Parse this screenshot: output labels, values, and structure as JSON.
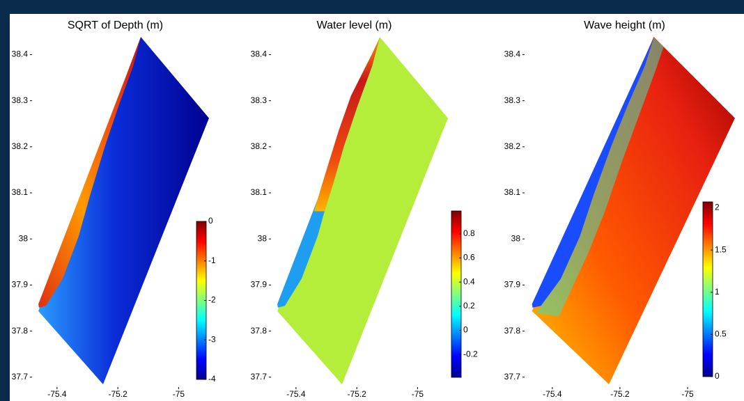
{
  "chart_data": [
    {
      "type": "map",
      "title": "SQRT of Depth (m)",
      "xlim": [
        -75.48,
        -74.9
      ],
      "xticks": [
        -75.4,
        -75.2,
        -75
      ],
      "ylim": [
        37.68,
        38.44
      ],
      "yticks": [
        37.7,
        37.8,
        37.9,
        38,
        38.1,
        38.2,
        38.3,
        38.4
      ],
      "colorbar": {
        "colormap": "jet",
        "clim": [
          -4,
          0
        ],
        "ticks": [
          -4,
          -3,
          -2,
          -1,
          0
        ]
      }
    },
    {
      "type": "map",
      "title": "Water level (m)",
      "xlim": [
        -75.48,
        -74.9
      ],
      "xticks": [
        -75.4,
        -75.2,
        -75
      ],
      "ylim": [
        37.68,
        38.44
      ],
      "yticks": [
        37.7,
        37.8,
        37.9,
        38,
        38.1,
        38.2,
        38.3,
        38.4
      ],
      "colorbar": {
        "colormap": "jet",
        "clim": [
          -0.39,
          0.99
        ],
        "ticks": [
          -0.2,
          0,
          0.2,
          0.4,
          0.6,
          0.8
        ]
      }
    },
    {
      "type": "map",
      "title": "Wave height (m)",
      "xlim": [
        -75.48,
        -74.86
      ],
      "xticks": [
        -75.4,
        -75.2,
        -75
      ],
      "ylim": [
        37.68,
        38.44
      ],
      "yticks": [
        37.7,
        37.8,
        37.9,
        38,
        38.1,
        38.2,
        38.3,
        38.4
      ],
      "colorbar": {
        "colormap": "jet",
        "clim": [
          0,
          2.07
        ],
        "ticks": [
          0,
          0.5,
          1,
          1.5,
          2
        ]
      }
    }
  ]
}
